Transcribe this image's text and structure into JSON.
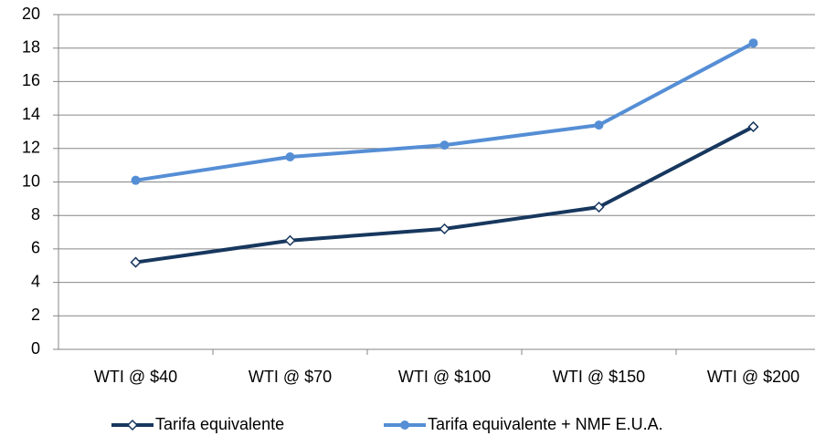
{
  "chart_data": {
    "type": "line",
    "categories": [
      "WTI @ $40",
      "WTI @ $70",
      "WTI @ $100",
      "WTI @ $150",
      "WTI @ $200"
    ],
    "series": [
      {
        "name": "Tarifa equivalente",
        "color": "#17375e",
        "marker": "diamond",
        "values": [
          5.2,
          6.5,
          7.2,
          8.5,
          13.3
        ]
      },
      {
        "name": "Tarifa equivalente + NMF E.U.A.",
        "color": "#558ed5",
        "marker": "circle",
        "values": [
          10.1,
          11.5,
          12.2,
          13.4,
          18.3
        ]
      }
    ],
    "ylim": [
      0,
      20
    ],
    "yticks": [
      0,
      2,
      4,
      6,
      8,
      10,
      12,
      14,
      16,
      18,
      20
    ],
    "grid": true,
    "legend": "bottom"
  }
}
